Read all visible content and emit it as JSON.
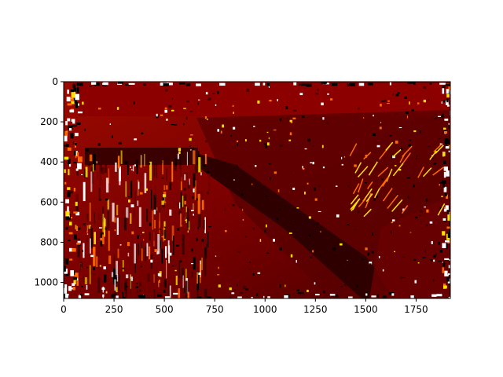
{
  "chart_data": {
    "type": "heatmap",
    "title": "",
    "xlabel": "",
    "ylabel": "",
    "xlim": [
      0,
      1920
    ],
    "ylim": [
      1080,
      0
    ],
    "x_ticks": [
      0,
      250,
      500,
      750,
      1000,
      1250,
      1500,
      1750
    ],
    "y_ticks": [
      0,
      200,
      400,
      600,
      800,
      1000
    ],
    "grid": false,
    "colormap": "hot",
    "colors": {
      "background_red": "#8a0000",
      "dark_red": "#3a0000",
      "mid_red": "#6e0000",
      "orange": "#ff6a00",
      "yellow": "#ffe100",
      "white": "#ffffff",
      "black": "#000000"
    }
  }
}
